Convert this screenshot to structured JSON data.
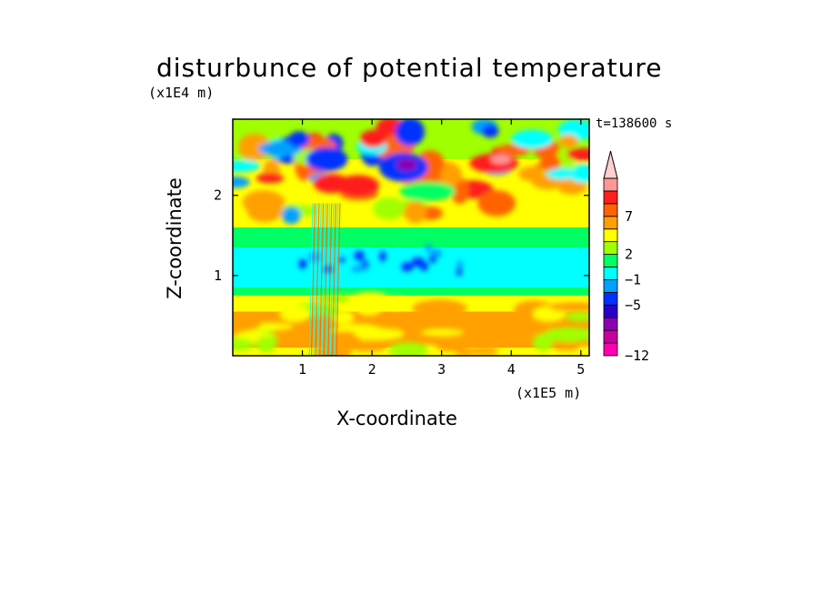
{
  "chart_data": {
    "type": "heatmap",
    "title": "disturbunce of potential temperature",
    "xlabel": "X-coordinate",
    "ylabel": "Z-coordinate",
    "x_scale_note": "(x1E5 m)",
    "y_scale_note": "(x1E4 m)",
    "time_label": "t=138600 s",
    "xlim": [
      0,
      5.12
    ],
    "ylim": [
      0,
      2.95
    ],
    "x_ticks": [
      1,
      2,
      3,
      4,
      5
    ],
    "x_tick_labels": [
      "1",
      "2",
      "3",
      "4",
      "5"
    ],
    "y_ticks": [
      1,
      2
    ],
    "y_tick_labels": [
      "1",
      "2"
    ],
    "colorbar": {
      "levels": [
        -12,
        -10,
        -8,
        -6,
        -5,
        -3,
        -1,
        1,
        2,
        3,
        5,
        7,
        9,
        11
      ],
      "colors": [
        "#ff00b4",
        "#c800a0",
        "#8c00b4",
        "#2800c8",
        "#0032ff",
        "#00a0ff",
        "#00ffff",
        "#00ff64",
        "#a0ff00",
        "#ffff00",
        "#ffa000",
        "#ff6400",
        "#ff1e1e",
        "#ff9696",
        "#ffcfcf"
      ],
      "tick_values": [
        -12,
        -5,
        -1,
        2,
        7
      ],
      "tick_labels": [
        "−12",
        "−5",
        "−1",
        "2",
        "7"
      ],
      "extend": "max"
    }
  }
}
